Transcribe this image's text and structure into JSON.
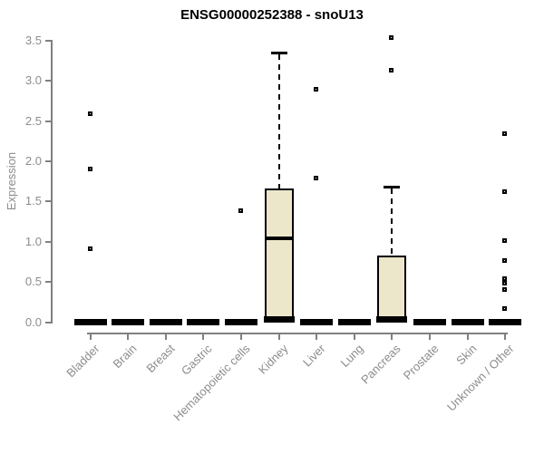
{
  "title": "ENSG00000252388 - snoU13",
  "chart_data": {
    "type": "boxplot",
    "title": "ENSG00000252388 - snoU13",
    "xlabel": "",
    "ylabel": "Expression",
    "ylim": [
      0,
      3.5
    ],
    "y_ticks": [
      0.0,
      0.5,
      1.0,
      1.5,
      2.0,
      2.5,
      3.0,
      3.5
    ],
    "grid": false,
    "legend_position": "none",
    "colors": {
      "box_fill": "#ece7cb",
      "box_stroke": "#000000",
      "axis": "#808080",
      "tick_label": "#8c8c8c",
      "title": "#000000"
    },
    "categories": [
      "Bladder",
      "Brain",
      "Breast",
      "Gastric",
      "Hematopoietic cells",
      "Kidney",
      "Liver",
      "Lung",
      "Pancreas",
      "Prostate",
      "Skin",
      "Unknown / Other"
    ],
    "series": [
      {
        "name": "Bladder",
        "whisker_low": 0,
        "q1": 0,
        "median": 0,
        "q3": 0,
        "whisker_high": 0,
        "outliers": [
          2.59,
          1.9,
          0.91
        ]
      },
      {
        "name": "Brain",
        "whisker_low": 0,
        "q1": 0,
        "median": 0,
        "q3": 0,
        "whisker_high": 0,
        "outliers": []
      },
      {
        "name": "Breast",
        "whisker_low": 0,
        "q1": 0,
        "median": 0,
        "q3": 0,
        "whisker_high": 0,
        "outliers": []
      },
      {
        "name": "Gastric",
        "whisker_low": 0,
        "q1": 0,
        "median": 0,
        "q3": 0,
        "whisker_high": 0,
        "outliers": []
      },
      {
        "name": "Hematopoietic cells",
        "whisker_low": 0,
        "q1": 0,
        "median": 0,
        "q3": 0,
        "whisker_high": 0,
        "outliers": [
          1.39
        ]
      },
      {
        "name": "Kidney",
        "whisker_low": 0,
        "q1": 0.02,
        "median": 1.04,
        "q3": 1.66,
        "whisker_high": 3.35,
        "outliers": []
      },
      {
        "name": "Liver",
        "whisker_low": 0,
        "q1": 0,
        "median": 0,
        "q3": 0,
        "whisker_high": 0,
        "outliers": [
          2.89,
          1.79
        ]
      },
      {
        "name": "Lung",
        "whisker_low": 0,
        "q1": 0,
        "median": 0,
        "q3": 0,
        "whisker_high": 0,
        "outliers": []
      },
      {
        "name": "Pancreas",
        "whisker_low": 0,
        "q1": 0.02,
        "median": 0.02,
        "q3": 0.83,
        "whisker_high": 1.68,
        "outliers": [
          3.54,
          3.13
        ]
      },
      {
        "name": "Prostate",
        "whisker_low": 0,
        "q1": 0,
        "median": 0,
        "q3": 0,
        "whisker_high": 0,
        "outliers": []
      },
      {
        "name": "Skin",
        "whisker_low": 0,
        "q1": 0,
        "median": 0,
        "q3": 0,
        "whisker_high": 0,
        "outliers": []
      },
      {
        "name": "Unknown / Other",
        "whisker_low": 0,
        "q1": 0,
        "median": 0,
        "q3": 0,
        "whisker_high": 0,
        "outliers": [
          2.34,
          1.62,
          1.01,
          0.77,
          0.54,
          0.48,
          0.41,
          0.17
        ]
      }
    ]
  }
}
